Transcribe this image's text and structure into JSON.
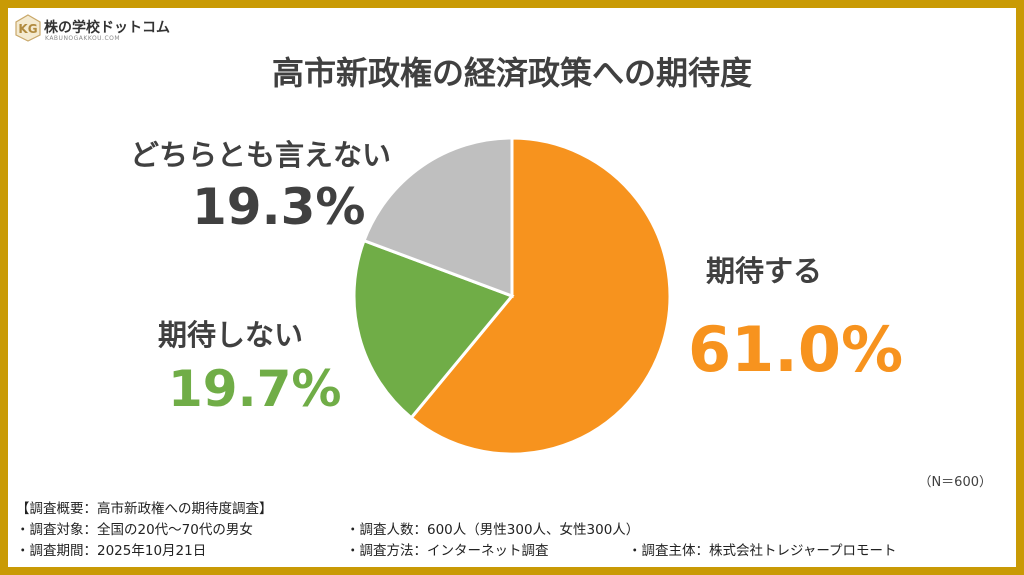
{
  "logo": {
    "name": "株の学校ドットコム",
    "subtitle": "KABUNOGAKKOU.COM",
    "mark": "KG"
  },
  "chart_data": {
    "type": "pie",
    "title": "高市新政権の経済政策への期待度",
    "slices": [
      {
        "label": "期待する",
        "value": 61.0,
        "value_label": "61.0%",
        "color": "#f7931e"
      },
      {
        "label": "期待しない",
        "value": 19.7,
        "value_label": "19.7%",
        "color": "#70ad47"
      },
      {
        "label": "どちらとも言えない",
        "value": 19.3,
        "value_label": "19.3%",
        "color": "#bfbfbf"
      }
    ],
    "start": "12 o'clock, clockwise",
    "legend": "none",
    "sample_note": "（N＝600）"
  },
  "notes": {
    "heading": "【調査概要：高市新政権への期待度調査】",
    "target": "・調査対象：全国の20代～70代の男女",
    "count": "・調査人数：600人（男性300人、女性300人）",
    "period": "・調査期間：2025年10月21日",
    "method": "・調査方法：インターネット調査",
    "sponsor": "・調査主体：株式会社トレジャープロモート"
  },
  "colors": {
    "frame": "#c99a05",
    "text": "#404040"
  }
}
